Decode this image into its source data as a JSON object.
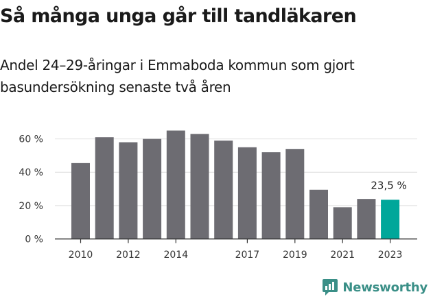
{
  "title": "Så många unga går till tandläkaren",
  "subtitle": "Andel 24–29-åringar i Emmaboda kommun som gjort basundersökning senaste två åren",
  "brand": {
    "name": "Newsworthy",
    "icon": "newsworthy-logo-icon"
  },
  "colors": {
    "bar": "#6d6c72",
    "highlight": "#00a79a",
    "grid": "#dedede",
    "axis": "#333333",
    "brand": "#3a8f87"
  },
  "chart_data": {
    "type": "bar",
    "title": "",
    "xlabel": "",
    "ylabel": "",
    "categories": [
      "2010",
      "2011",
      "2012",
      "2013",
      "2014",
      "2015",
      "2016",
      "2017",
      "2018",
      "2019",
      "2020",
      "2021",
      "2022",
      "2023"
    ],
    "x_tick_labels": [
      "2010",
      "",
      "2012",
      "",
      "2014",
      "",
      "",
      "2017",
      "",
      "2019",
      "",
      "2021",
      "",
      "2023"
    ],
    "values": [
      45.5,
      61,
      58,
      60,
      65,
      63,
      59,
      55,
      52,
      54,
      29.5,
      19,
      24,
      23.5
    ],
    "highlight_index": 13,
    "annotation": "23,5 %",
    "ylim": [
      0,
      70
    ],
    "yticks": [
      0,
      20,
      40,
      60
    ],
    "ytick_labels": [
      "0 %",
      "20 %",
      "40 %",
      "60 %"
    ],
    "grid": true,
    "legend": "none"
  }
}
